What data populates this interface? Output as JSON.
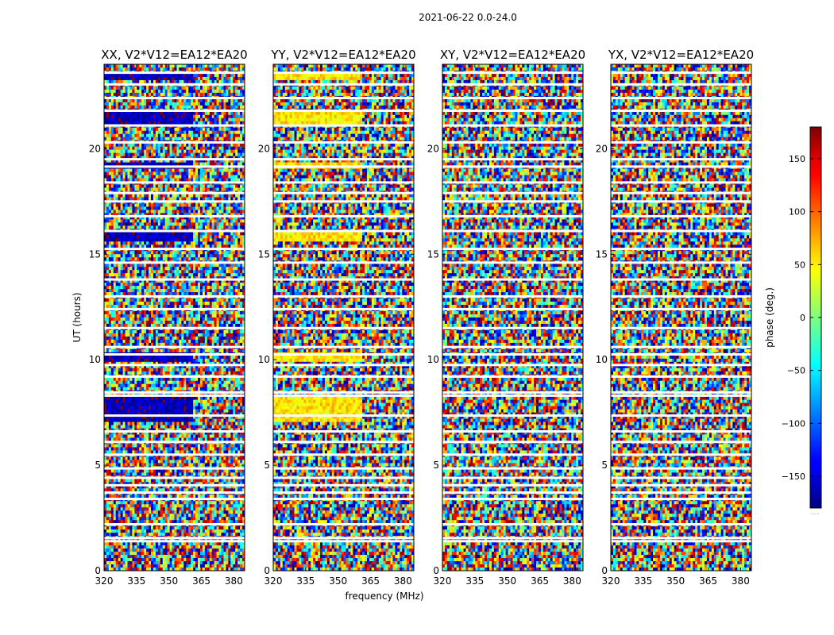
{
  "chart_data": {
    "type": "heatmap",
    "suptitle": "2021-06-22 0.0-24.0",
    "xlabel": "frequency (MHz)",
    "ylabel": "UT (hours)",
    "xlim": [
      320,
      385
    ],
    "ylim": [
      0,
      24
    ],
    "xticks": [
      320,
      335,
      350,
      365,
      380
    ],
    "yticks": [
      0,
      5,
      10,
      15,
      20
    ],
    "xtick_labels": [
      "320",
      "335",
      "350",
      "365",
      "380"
    ],
    "ytick_labels": [
      "0",
      "5",
      "10",
      "15",
      "20"
    ],
    "panels": [
      {
        "title": "XX, V2*V12=EA12*EA20",
        "bias_phase": -160
      },
      {
        "title": "YY, V2*V12=EA12*EA20",
        "bias_phase": 55
      },
      {
        "title": "XY, V2*V12=EA12*EA20",
        "bias_phase": null
      },
      {
        "title": "YX, V2*V12=EA12*EA20",
        "bias_phase": null
      }
    ],
    "colorbar": {
      "label": "phase (deg.)",
      "range": [
        -180,
        180
      ],
      "ticks": [
        150,
        100,
        50,
        0,
        -50,
        -100,
        -150
      ],
      "tick_labels": [
        "150",
        "100",
        "50",
        "0",
        "−50",
        "−100",
        "−150"
      ],
      "colormap": "jet",
      "under_label": "......"
    },
    "flagged_ut_hours": [
      1.4,
      1.55,
      2.2,
      3.4,
      3.7,
      4.05,
      4.4,
      4.85,
      5.5,
      6.1,
      6.6,
      7.35,
      8.3,
      8.45,
      9.2,
      9.75,
      10.25,
      10.6,
      11.5,
      12.4,
      13.0,
      13.8,
      14.6,
      15.25,
      16.1,
      16.8,
      17.5,
      17.9,
      18.4,
      19.15,
      19.5,
      20.3,
      21.1,
      21.8,
      22.4,
      23.05,
      23.6
    ]
  }
}
